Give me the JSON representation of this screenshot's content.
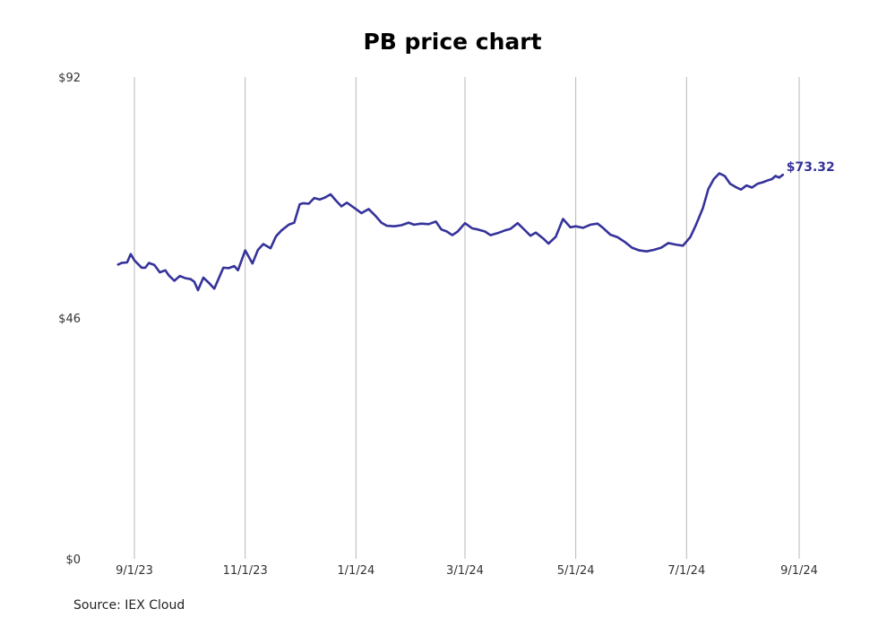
{
  "chart_data": {
    "type": "line",
    "title": "PB price chart",
    "source": "Source: IEX Cloud",
    "xlabel": "",
    "ylabel": "",
    "x_ticks": [
      "9/1/23",
      "11/1/23",
      "1/1/24",
      "3/1/24",
      "5/1/24",
      "7/1/24",
      "9/1/24"
    ],
    "y_ticks": [
      "$0",
      "$46",
      "$92"
    ],
    "ylim": [
      0,
      92
    ],
    "xlim": [
      "2023-08-23",
      "2024-09-01"
    ],
    "grid": "vertical",
    "line_color": "#35339a",
    "last_value_label": "$73.32",
    "series": [
      {
        "x": [
          "2023-08-23",
          "2023-08-25",
          "2023-08-28",
          "2023-08-30",
          "2023-09-01",
          "2023-09-05",
          "2023-09-07",
          "2023-09-09",
          "2023-09-12",
          "2023-09-15",
          "2023-09-18",
          "2023-09-20",
          "2023-09-23",
          "2023-09-26",
          "2023-09-29",
          "2023-10-02",
          "2023-10-04",
          "2023-10-06",
          "2023-10-09",
          "2023-10-12",
          "2023-10-15",
          "2023-10-18",
          "2023-10-20",
          "2023-10-23",
          "2023-10-26",
          "2023-10-28",
          "2023-11-01",
          "2023-11-05",
          "2023-11-08",
          "2023-11-11",
          "2023-11-15",
          "2023-11-18",
          "2023-11-21",
          "2023-11-25",
          "2023-11-28",
          "2023-12-01",
          "2023-12-03",
          "2023-12-06",
          "2023-12-09",
          "2023-12-12",
          "2023-12-15",
          "2023-12-18",
          "2023-12-21",
          "2023-12-24",
          "2023-12-27",
          "2024-01-01",
          "2024-01-04",
          "2024-01-08",
          "2024-01-12",
          "2024-01-15",
          "2024-01-18",
          "2024-01-22",
          "2024-01-26",
          "2024-01-30",
          "2024-02-02",
          "2024-02-06",
          "2024-02-10",
          "2024-02-14",
          "2024-02-17",
          "2024-02-20",
          "2024-02-23",
          "2024-02-26",
          "2024-03-01",
          "2024-03-05",
          "2024-03-08",
          "2024-03-12",
          "2024-03-15",
          "2024-03-19",
          "2024-03-23",
          "2024-03-26",
          "2024-03-30",
          "2024-04-02",
          "2024-04-06",
          "2024-04-09",
          "2024-04-13",
          "2024-04-16",
          "2024-04-20",
          "2024-04-24",
          "2024-04-28",
          "2024-05-01",
          "2024-05-05",
          "2024-05-09",
          "2024-05-13",
          "2024-05-16",
          "2024-05-20",
          "2024-05-24",
          "2024-05-28",
          "2024-06-01",
          "2024-06-05",
          "2024-06-09",
          "2024-06-13",
          "2024-06-17",
          "2024-06-21",
          "2024-06-25",
          "2024-06-29",
          "2024-07-03",
          "2024-07-06",
          "2024-07-10",
          "2024-07-13",
          "2024-07-16",
          "2024-07-19",
          "2024-07-22",
          "2024-07-25",
          "2024-07-28",
          "2024-07-31",
          "2024-08-03",
          "2024-08-06",
          "2024-08-09",
          "2024-08-12",
          "2024-08-15",
          "2024-08-17",
          "2024-08-19",
          "2024-08-21",
          "2024-08-23"
        ],
        "values": [
          56.2,
          56.5,
          56.6,
          58.2,
          57.0,
          55.6,
          55.6,
          56.5,
          56.1,
          54.7,
          55.1,
          54.1,
          53.1,
          54.0,
          53.6,
          53.4,
          52.9,
          51.3,
          53.7,
          52.7,
          51.6,
          54.0,
          55.6,
          55.5,
          55.9,
          55.1,
          58.9,
          56.4,
          59.0,
          60.1,
          59.3,
          61.6,
          62.7,
          63.8,
          64.2,
          67.7,
          67.9,
          67.8,
          68.9,
          68.6,
          69.0,
          69.6,
          68.4,
          67.3,
          68.0,
          66.8,
          66.0,
          66.8,
          65.4,
          64.2,
          63.6,
          63.5,
          63.7,
          64.2,
          63.8,
          64.0,
          63.9,
          64.4,
          62.9,
          62.5,
          61.8,
          62.5,
          64.1,
          63.1,
          62.9,
          62.5,
          61.8,
          62.2,
          62.7,
          63.0,
          64.1,
          63.1,
          61.7,
          62.3,
          61.2,
          60.2,
          61.5,
          64.9,
          63.3,
          63.5,
          63.2,
          63.8,
          64.0,
          63.2,
          61.9,
          61.4,
          60.5,
          59.4,
          58.9,
          58.7,
          59.0,
          59.4,
          60.3,
          60.0,
          59.8,
          61.4,
          63.6,
          67.0,
          70.6,
          72.5,
          73.6,
          73.1,
          71.6,
          71.0,
          70.5,
          71.3,
          70.9,
          71.6,
          71.9,
          72.3,
          72.5,
          73.1,
          72.8,
          73.32
        ]
      }
    ]
  }
}
